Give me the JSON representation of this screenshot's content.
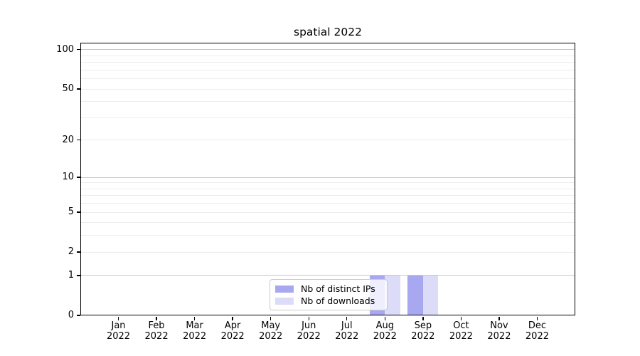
{
  "chart_data": {
    "type": "bar",
    "title": "spatial 2022",
    "categories": [
      "Jan",
      "Feb",
      "Mar",
      "Apr",
      "May",
      "Jun",
      "Jul",
      "Aug",
      "Sep",
      "Oct",
      "Nov",
      "Dec"
    ],
    "x_year_label": "2022",
    "series": [
      {
        "name": "Nb of distinct IPs",
        "color": "#a8a8f0",
        "values": [
          0,
          0,
          0,
          0,
          0,
          0,
          0,
          1,
          1,
          0,
          0,
          0
        ]
      },
      {
        "name": "Nb of downloads",
        "color": "#dcdcf8",
        "values": [
          0,
          0,
          0,
          0,
          0,
          0,
          0,
          1,
          1,
          0,
          0,
          0
        ]
      }
    ],
    "y_scale": "log1p",
    "ylim": [
      0,
      113
    ],
    "y_major_ticks": [
      0,
      1,
      2,
      5,
      10,
      20,
      50,
      100
    ],
    "y_major_grid_values": [
      1,
      10,
      100
    ],
    "y_minor_grid_values": [
      2,
      3,
      4,
      5,
      6,
      7,
      8,
      9,
      20,
      30,
      40,
      50,
      60,
      70,
      80,
      90
    ],
    "grid": "horizontal",
    "legend": {
      "labels": [
        "Nb of distinct IPs",
        "Nb of downloads"
      ],
      "position": "lower-center"
    },
    "colors": {
      "major_grid": "#c8c8c8",
      "minor_grid": "#ededed",
      "spine": "#000000",
      "text": "#000000"
    }
  }
}
